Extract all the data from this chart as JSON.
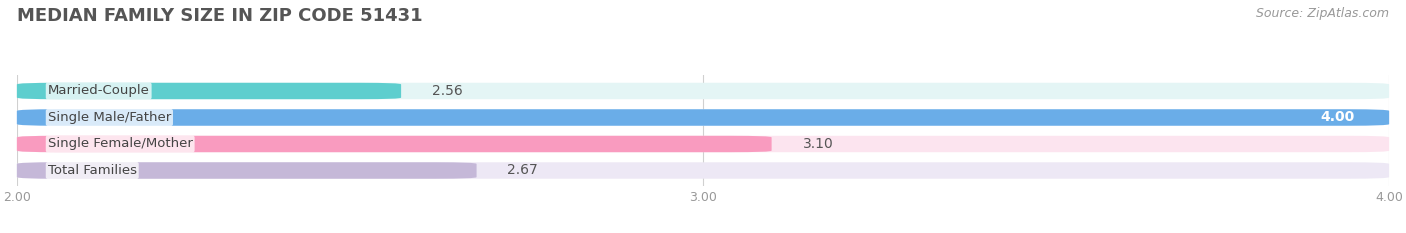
{
  "title": "MEDIAN FAMILY SIZE IN ZIP CODE 51431",
  "source": "Source: ZipAtlas.com",
  "categories": [
    "Married-Couple",
    "Single Male/Father",
    "Single Female/Mother",
    "Total Families"
  ],
  "values": [
    2.56,
    4.0,
    3.1,
    2.67
  ],
  "bar_colors": [
    "#5ecece",
    "#6aade8",
    "#f99bbf",
    "#c5b8d8"
  ],
  "bar_bg_colors": [
    "#e4f5f5",
    "#ddeeff",
    "#fce4ef",
    "#ede8f5"
  ],
  "xlim": [
    2.0,
    4.0
  ],
  "xticks": [
    2.0,
    3.0,
    4.0
  ],
  "xtick_labels": [
    "2.00",
    "3.00",
    "4.00"
  ],
  "value_fontsize": 10,
  "label_fontsize": 9.5,
  "title_fontsize": 13,
  "source_fontsize": 9,
  "background_color": "#ffffff"
}
